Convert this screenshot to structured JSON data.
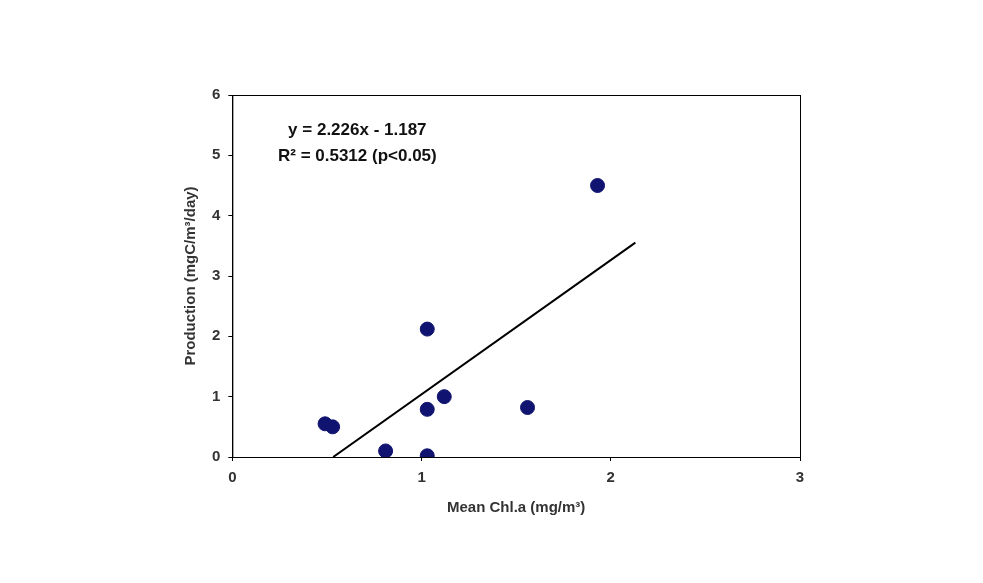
{
  "chart_data": {
    "type": "scatter",
    "x_label": "Mean Chl.a (mg/m³)",
    "y_label": "Production (mgC/m³/day)",
    "annotations": [
      "y = 2.226x - 1.187",
      "R² = 0.5312 (p<0.05)"
    ],
    "series": [
      {
        "type": "scatter",
        "color": "#101470",
        "marker": "circle",
        "x": [
          0.49,
          0.53,
          0.81,
          1.03,
          1.03,
          1.03,
          1.12,
          1.56,
          1.93
        ],
        "values": [
          0.55,
          0.5,
          0.1,
          2.12,
          0.79,
          0.02,
          1.0,
          0.82,
          4.5
        ]
      },
      {
        "type": "line",
        "color": "#000000",
        "line_style": "solid",
        "x": [
          0.533,
          2.13
        ],
        "values": [
          0,
          3.554
        ]
      }
    ],
    "xlim": [
      0,
      3
    ],
    "xticks": [
      0,
      1,
      2,
      3
    ],
    "ylim": [
      0,
      6
    ],
    "yticks": [
      0,
      1,
      2,
      3,
      4,
      5,
      6
    ],
    "grid": false
  }
}
